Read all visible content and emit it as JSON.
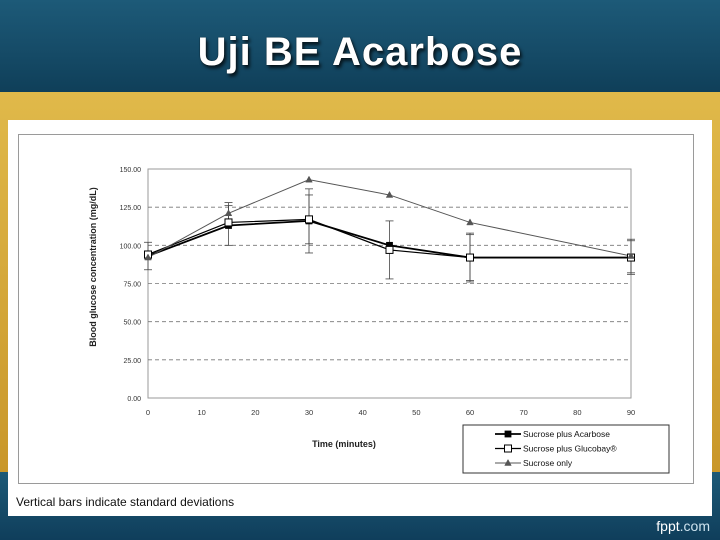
{
  "slide": {
    "title": "Uji BE Acarbose",
    "caption": "Vertical bars indicate standard deviations",
    "brand": "fppt",
    "brand_suffix": ".com"
  },
  "colors": {
    "header": "#154a66",
    "gold": "#d6a83a",
    "series_line": "#000000",
    "series_only": "#555555"
  },
  "chart_data": {
    "type": "line",
    "xlabel": "Time (minutes)",
    "ylabel": "Blood glucose concentration (mg/dL)",
    "x": [
      0,
      15,
      30,
      45,
      60,
      90
    ],
    "xlim": [
      0,
      90
    ],
    "ylim": [
      0,
      150
    ],
    "xticks": [
      0,
      10,
      20,
      30,
      40,
      50,
      60,
      70,
      80,
      90
    ],
    "yticks": [
      0,
      25,
      50,
      75,
      100,
      125,
      150
    ],
    "ytick_labels": [
      "0.00",
      "25.00",
      "50.00",
      "75.00",
      "100.00",
      "125.00",
      "150.00"
    ],
    "grid": "horizontal dashed",
    "legend_position": "bottom-right",
    "series": [
      {
        "name": "Sucrose plus Acarbose",
        "marker": "filled-square",
        "values": [
          93,
          113,
          116,
          100,
          92,
          92
        ],
        "error": [
          9,
          13,
          21,
          0,
          15,
          11
        ]
      },
      {
        "name": "Sucrose plus Glucobay®",
        "marker": "open-square",
        "values": [
          94,
          115,
          117,
          97,
          92,
          92
        ],
        "error": [
          0,
          0,
          16,
          19,
          16,
          0
        ]
      },
      {
        "name": "Sucrose only",
        "marker": "filled-triangle",
        "values": [
          92,
          121,
          143,
          133,
          115,
          93
        ],
        "error": [
          0,
          7,
          0,
          0,
          0,
          11
        ]
      }
    ]
  }
}
